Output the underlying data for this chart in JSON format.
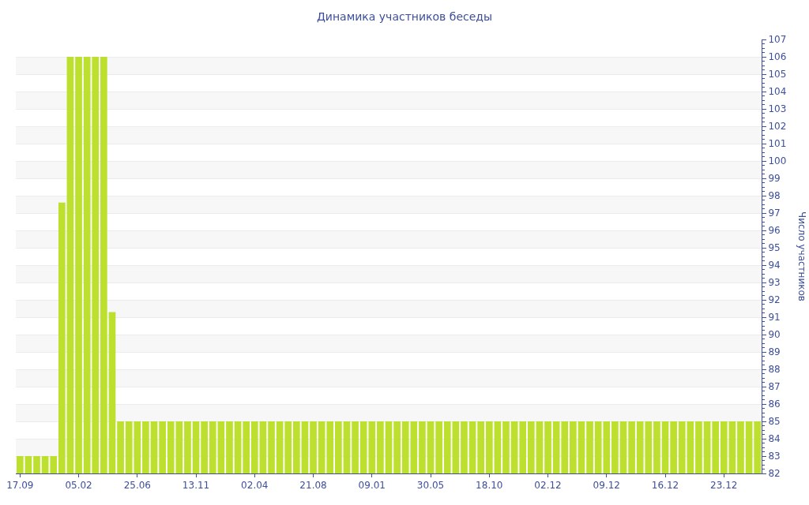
{
  "chart_data": {
    "type": "bar",
    "title": "Динамика участников беседы",
    "ylabel": "Число участников",
    "categories": [
      "17.09",
      null,
      null,
      null,
      null,
      null,
      null,
      "05.02",
      null,
      null,
      null,
      null,
      null,
      null,
      "25.06",
      null,
      null,
      null,
      null,
      null,
      null,
      "13.11",
      null,
      null,
      null,
      null,
      null,
      null,
      "02.04",
      null,
      null,
      null,
      null,
      null,
      null,
      "21.08",
      null,
      null,
      null,
      null,
      null,
      null,
      "09.01",
      null,
      null,
      null,
      null,
      null,
      null,
      "30.05",
      null,
      null,
      null,
      null,
      null,
      null,
      "18.10",
      null,
      null,
      null,
      null,
      null,
      null,
      "02.12",
      null,
      null,
      null,
      null,
      null,
      null,
      "09.12",
      null,
      null,
      null,
      null,
      null,
      null,
      "16.12",
      null,
      null,
      null,
      null,
      null,
      null,
      "23.12",
      null,
      null,
      null,
      null
    ],
    "values": [
      83,
      83,
      83,
      83,
      83,
      97.6,
      106,
      106,
      106,
      106,
      106,
      91.3,
      85,
      85,
      85,
      85,
      85,
      85,
      85,
      85,
      85,
      85,
      85,
      85,
      85,
      85,
      85,
      85,
      85,
      85,
      85,
      85,
      85,
      85,
      85,
      85,
      85,
      85,
      85,
      85,
      85,
      85,
      85,
      85,
      85,
      85,
      85,
      85,
      85,
      85,
      85,
      85,
      85,
      85,
      85,
      85,
      85,
      85,
      85,
      85,
      85,
      85,
      85,
      85,
      85,
      85,
      85,
      85,
      85,
      85,
      85,
      85,
      85,
      85,
      85,
      85,
      85,
      85,
      85,
      85,
      85,
      85,
      85,
      85,
      85,
      85,
      85,
      85,
      85
    ],
    "color": "#bde02f",
    "ylim": [
      82,
      107
    ],
    "yticks": [
      82,
      83,
      84,
      85,
      86,
      87,
      88,
      89,
      90,
      91,
      92,
      93,
      94,
      95,
      96,
      97,
      98,
      99,
      100,
      101,
      102,
      103,
      104,
      105,
      106,
      107
    ],
    "grid": "y"
  }
}
